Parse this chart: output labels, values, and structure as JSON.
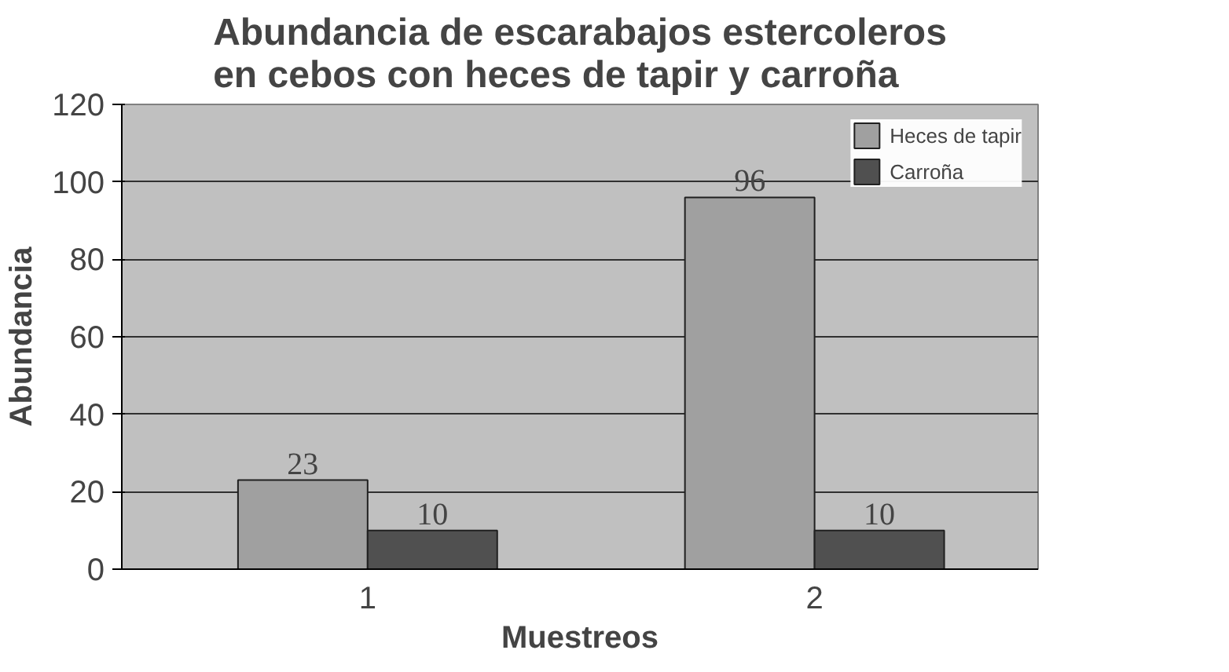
{
  "chart_data": {
    "type": "bar",
    "title": "Abundancia de escarabajos estercoleros en cebos con heces de tapir y carroña",
    "xlabel": "Muestreos",
    "ylabel": "Abundancia",
    "categories": [
      "1",
      "2"
    ],
    "series": [
      {
        "name": "Heces de tapir",
        "color": "#a0a0a0",
        "values": [
          23,
          96
        ]
      },
      {
        "name": "Carroña",
        "color": "#505050",
        "values": [
          10,
          10
        ]
      }
    ],
    "ylim": [
      0,
      120
    ],
    "yticks": [
      0,
      20,
      40,
      60,
      80,
      100,
      120
    ],
    "grid": "y",
    "legend": "top right",
    "data_labels": true
  }
}
